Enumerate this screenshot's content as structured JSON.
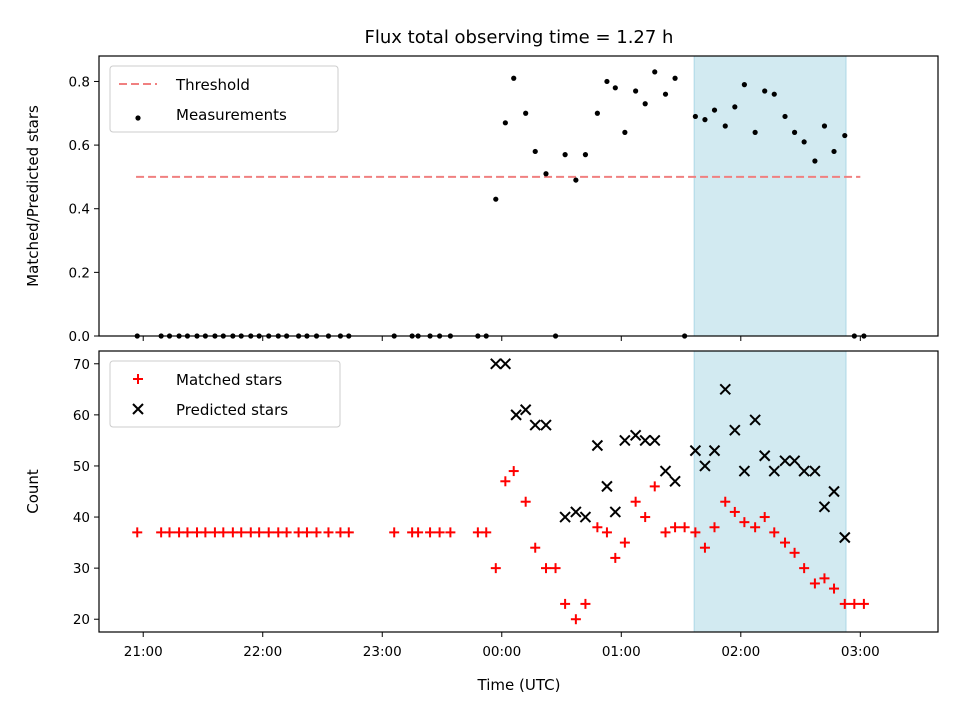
{
  "chart_data": [
    {
      "type": "scatter",
      "title": "Flux total observing time = 1.27 h",
      "xlabel": "",
      "ylabel": "Matched/Predicted stars",
      "ylim": [
        0,
        0.88
      ],
      "yticks": [
        0.0,
        0.2,
        0.4,
        0.6,
        0.8
      ],
      "ytick_labels": [
        "0.0",
        "0.2",
        "0.4",
        "0.6",
        "0.8"
      ],
      "xlim_hours": [
        20.63,
        27.65
      ],
      "grid": false,
      "legend_position": "top-left",
      "highlight_span_hours": [
        25.61,
        26.88
      ],
      "highlight_color": "#add8e6",
      "threshold": {
        "name": "Threshold",
        "y": 0.5,
        "x_range_hours": [
          20.94,
          27.0
        ],
        "color": "#f08080"
      },
      "series": [
        {
          "name": "Measurements",
          "color": "#000000",
          "x_hours": [
            20.95,
            21.15,
            21.22,
            21.3,
            21.37,
            21.45,
            21.52,
            21.6,
            21.67,
            21.75,
            21.82,
            21.9,
            21.97,
            22.05,
            22.13,
            22.2,
            22.3,
            22.37,
            22.45,
            22.55,
            22.65,
            22.72,
            23.1,
            23.25,
            23.3,
            23.4,
            23.48,
            23.57,
            23.8,
            23.87,
            23.95,
            24.03,
            24.1,
            24.2,
            24.28,
            24.37,
            24.45,
            24.53,
            24.62,
            24.7,
            24.8,
            24.88,
            24.95,
            25.03,
            25.12,
            25.2,
            25.28,
            25.37,
            25.45,
            25.53,
            25.62,
            25.7,
            25.78,
            25.87,
            25.95,
            26.03,
            26.12,
            26.2,
            26.28,
            26.37,
            26.45,
            26.53,
            26.62,
            26.7,
            26.78,
            26.87,
            26.95,
            27.03
          ],
          "y": [
            0.0,
            0.0,
            0.0,
            0.0,
            0.0,
            0.0,
            0.0,
            0.0,
            0.0,
            0.0,
            0.0,
            0.0,
            0.0,
            0.0,
            0.0,
            0.0,
            0.0,
            0.0,
            0.0,
            0.0,
            0.0,
            0.0,
            0.0,
            0.0,
            0.0,
            0.0,
            0.0,
            0.0,
            0.0,
            0.0,
            0.43,
            0.67,
            0.81,
            0.7,
            0.58,
            0.51,
            0.0,
            0.57,
            0.49,
            0.57,
            0.7,
            0.8,
            0.78,
            0.64,
            0.77,
            0.73,
            0.83,
            0.76,
            0.81,
            0.0,
            0.69,
            0.68,
            0.71,
            0.66,
            0.72,
            0.79,
            0.64,
            0.77,
            0.76,
            0.69,
            0.64,
            0.61,
            0.55,
            0.66,
            0.58,
            0.63,
            0.0,
            0.0
          ]
        }
      ]
    },
    {
      "type": "scatter",
      "title": "",
      "xlabel": "Time (UTC)",
      "ylabel": "Count",
      "ylim": [
        17.5,
        72.5
      ],
      "yticks": [
        20,
        30,
        40,
        50,
        60,
        70
      ],
      "ytick_labels": [
        "20",
        "30",
        "40",
        "50",
        "60",
        "70"
      ],
      "xticks_hours": [
        21,
        22,
        23,
        24,
        25,
        26,
        27
      ],
      "xtick_labels": [
        "21:00",
        "22:00",
        "23:00",
        "00:00",
        "01:00",
        "02:00",
        "03:00"
      ],
      "xlim_hours": [
        20.63,
        27.65
      ],
      "grid": false,
      "legend_position": "top-left",
      "highlight_span_hours": [
        25.61,
        26.88
      ],
      "highlight_color": "#add8e6",
      "series": [
        {
          "name": "Matched stars",
          "marker": "+",
          "color": "#ff0000",
          "x_hours": [
            20.95,
            21.15,
            21.22,
            21.3,
            21.37,
            21.45,
            21.52,
            21.6,
            21.67,
            21.75,
            21.82,
            21.9,
            21.97,
            22.05,
            22.13,
            22.2,
            22.3,
            22.37,
            22.45,
            22.55,
            22.65,
            22.72,
            23.1,
            23.25,
            23.3,
            23.4,
            23.48,
            23.57,
            23.8,
            23.87,
            23.95,
            24.03,
            24.1,
            24.2,
            24.28,
            24.37,
            24.45,
            24.53,
            24.62,
            24.7,
            24.8,
            24.88,
            24.95,
            25.03,
            25.12,
            25.2,
            25.28,
            25.37,
            25.45,
            25.53,
            25.62,
            25.7,
            25.78,
            25.87,
            25.95,
            26.03,
            26.12,
            26.2,
            26.28,
            26.37,
            26.45,
            26.53,
            26.62,
            26.7,
            26.78,
            26.87,
            26.95,
            27.03
          ],
          "y": [
            37,
            37,
            37,
            37,
            37,
            37,
            37,
            37,
            37,
            37,
            37,
            37,
            37,
            37,
            37,
            37,
            37,
            37,
            37,
            37,
            37,
            37,
            37,
            37,
            37,
            37,
            37,
            37,
            37,
            37,
            30,
            47,
            49,
            43,
            34,
            30,
            30,
            23,
            20,
            23,
            38,
            37,
            32,
            35,
            43,
            40,
            46,
            37,
            38,
            38,
            37,
            34,
            38,
            43,
            41,
            39,
            38,
            40,
            37,
            35,
            33,
            30,
            27,
            28,
            26,
            23,
            23,
            23
          ]
        },
        {
          "name": "Predicted stars",
          "marker": "x",
          "color": "#000000",
          "x_hours": [
            23.95,
            24.03,
            24.12,
            24.2,
            24.28,
            24.37,
            24.53,
            24.62,
            24.7,
            24.8,
            24.88,
            24.95,
            25.03,
            25.12,
            25.2,
            25.28,
            25.37,
            25.45,
            25.62,
            25.7,
            25.78,
            25.87,
            25.95,
            26.03,
            26.12,
            26.2,
            26.28,
            26.37,
            26.45,
            26.53,
            26.62,
            26.7,
            26.78,
            26.87
          ],
          "y": [
            70,
            70,
            60,
            61,
            58,
            58,
            40,
            41,
            40,
            54,
            46,
            41,
            55,
            56,
            55,
            55,
            49,
            47,
            53,
            50,
            53,
            65,
            57,
            49,
            59,
            52,
            49,
            51,
            51,
            49,
            49,
            42,
            45,
            36
          ]
        }
      ]
    }
  ]
}
